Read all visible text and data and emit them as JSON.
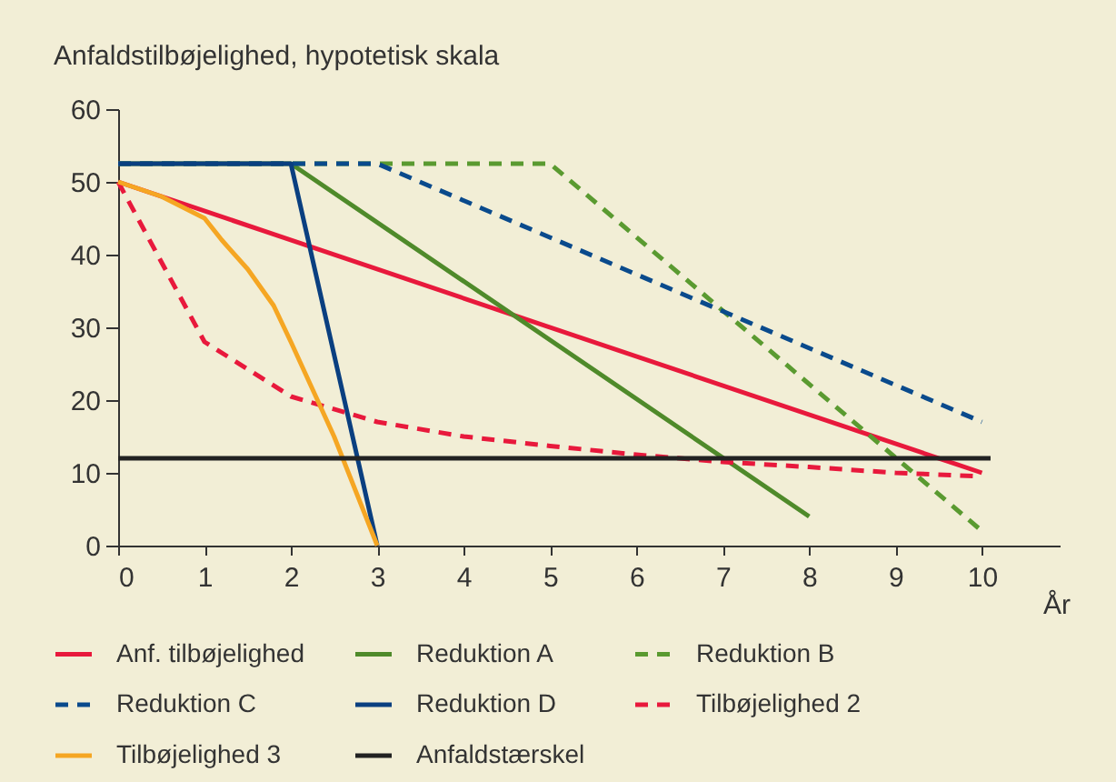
{
  "chart_data": {
    "type": "line",
    "ylabel": "Anfaldstilbøjelighed, hypotetisk skala",
    "xlabel": "År",
    "xlim": [
      0,
      10.9
    ],
    "xticks": [
      0,
      1,
      2,
      3,
      4,
      5,
      6,
      7,
      8,
      9,
      10
    ],
    "ylim": [
      0,
      60
    ],
    "yticks": [
      0,
      10,
      20,
      30,
      40,
      50,
      60
    ],
    "legend": "bottom",
    "series": [
      {
        "name": "Anf. tilbøjelighed",
        "color": "#e8193c",
        "line_style": "solid",
        "x": [
          0,
          10
        ],
        "values": [
          50,
          10
        ]
      },
      {
        "name": "Reduktion A",
        "color": "#4f8a2a",
        "line_style": "solid",
        "x": [
          0,
          2,
          8
        ],
        "values": [
          52.5,
          52.5,
          4
        ]
      },
      {
        "name": "Reduktion B",
        "color": "#5a9a30",
        "line_style": "dashed",
        "x": [
          0,
          5,
          10
        ],
        "values": [
          52.5,
          52.5,
          2
        ]
      },
      {
        "name": "Reduktion C",
        "color": "#0a4a8c",
        "line_style": "dashed",
        "x": [
          0,
          3,
          10
        ],
        "values": [
          52.5,
          52.5,
          17
        ]
      },
      {
        "name": "Reduktion D",
        "color": "#0a3f80",
        "line_style": "solid",
        "x": [
          0,
          2,
          3
        ],
        "values": [
          52.5,
          52.5,
          0
        ]
      },
      {
        "name": "Tilbøjelighed 2",
        "color": "#e8193c",
        "line_style": "dashed",
        "x": [
          0,
          1,
          2,
          3,
          4,
          5,
          6,
          7,
          8,
          9,
          10
        ],
        "values": [
          50,
          28,
          20.5,
          17,
          15,
          13.7,
          12.5,
          11.5,
          10.8,
          10,
          9.5
        ]
      },
      {
        "name": "Tilbøjelighed 3",
        "color": "#f5a623",
        "line_style": "solid",
        "x": [
          0,
          0.5,
          1,
          1.2,
          1.5,
          1.8,
          2,
          2.5,
          3
        ],
        "values": [
          50,
          48,
          45,
          42,
          38,
          33,
          28,
          15,
          0
        ]
      },
      {
        "name": "Anfaldstærskel",
        "color": "#222222",
        "line_style": "solid",
        "x": [
          0,
          10.1
        ],
        "values": [
          12,
          12
        ]
      }
    ]
  }
}
